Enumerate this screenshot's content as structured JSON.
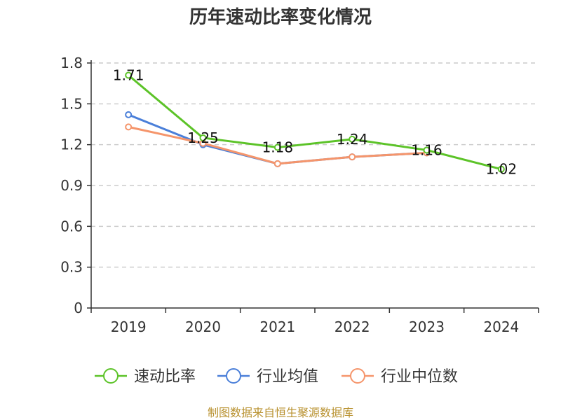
{
  "chart_data": {
    "type": "line",
    "title": "历年速动比率变化情况",
    "categories": [
      "2019",
      "2020",
      "2021",
      "2022",
      "2023",
      "2024"
    ],
    "ylim": [
      0,
      1.8
    ],
    "yticks": [
      "0",
      "0.3",
      "0.6",
      "0.9",
      "1.2",
      "1.5",
      "1.8"
    ],
    "grid": true,
    "legend_position": "bottom",
    "series": [
      {
        "name": "速动比率",
        "color": "#5cc328",
        "values": [
          1.71,
          1.25,
          1.18,
          1.24,
          1.16,
          1.02
        ],
        "labels": [
          "1.71",
          "1.25",
          "1.18",
          "1.24",
          "1.16",
          "1.02"
        ]
      },
      {
        "name": "行业均值",
        "color": "#4a7fd9",
        "values": [
          1.42,
          1.2,
          1.06,
          1.11,
          1.14,
          null
        ]
      },
      {
        "name": "行业中位数",
        "color": "#f5956b",
        "values": [
          1.33,
          1.21,
          1.06,
          1.11,
          1.14,
          null
        ]
      }
    ],
    "source": "制图数据来自恒生聚源数据库"
  }
}
